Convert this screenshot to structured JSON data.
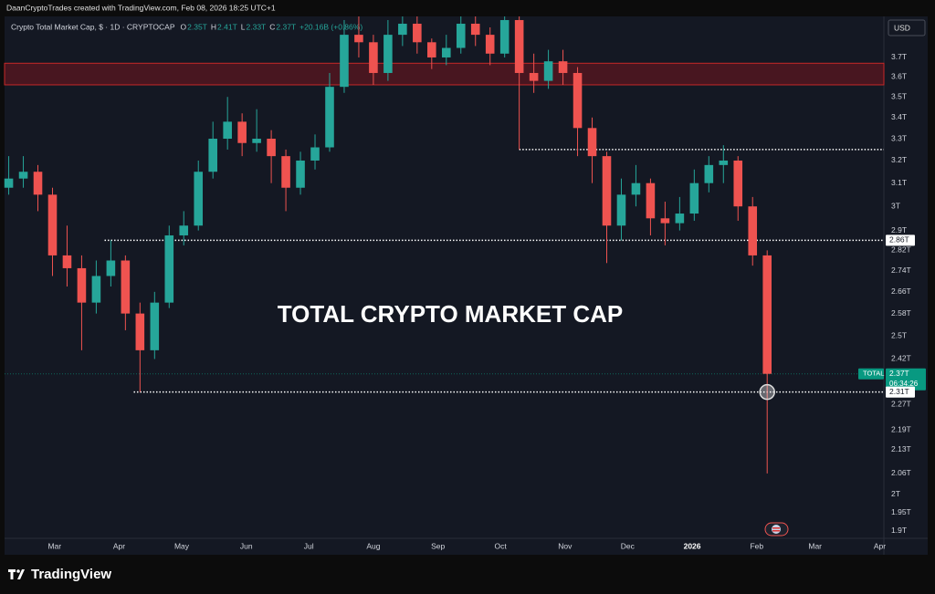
{
  "header": "DaanCryptoTrades created with TradingView.com, Feb 08, 2026 18:25 UTC+1",
  "chart_data": {
    "type": "candlestick",
    "title": "Crypto Total Market Cap, $ · 1D · CRYPTOCAP",
    "legend_values": [
      {
        "key": "O",
        "value": "2.35T"
      },
      {
        "key": "H",
        "value": "2.41T"
      },
      {
        "key": "L",
        "value": "2.33T"
      },
      {
        "key": "C",
        "value": "2.37T"
      }
    ],
    "change": "+20.16B (+0.86%)",
    "currency": "USD",
    "annotation": "TOTAL CRYPTO MARKET CAP",
    "x": [
      0,
      7,
      14,
      21,
      28,
      35,
      42,
      49,
      56,
      63,
      70,
      77,
      84,
      91,
      98,
      105,
      112,
      119,
      126,
      133,
      140,
      147,
      154,
      161,
      168,
      175,
      182,
      189,
      196,
      203,
      210,
      217,
      224,
      231,
      238,
      245,
      252,
      259,
      266,
      273,
      280,
      287,
      294,
      301,
      308,
      315,
      322,
      329,
      336,
      343,
      350,
      357,
      364
    ],
    "open": [
      3.08,
      3.12,
      3.15,
      3.05,
      2.8,
      2.75,
      2.62,
      2.72,
      2.78,
      2.58,
      2.45,
      2.62,
      2.88,
      2.92,
      3.15,
      3.3,
      3.38,
      3.28,
      3.3,
      3.22,
      3.08,
      3.2,
      3.26,
      3.55,
      3.82,
      3.78,
      3.62,
      3.82,
      3.88,
      3.78,
      3.7,
      3.75,
      3.88,
      3.82,
      3.72,
      3.9,
      3.62,
      3.58,
      3.68,
      3.62,
      3.35,
      3.22,
      2.92,
      3.05,
      3.1,
      2.95,
      2.93,
      2.97,
      3.1,
      3.18,
      3.2,
      3.0,
      2.8
    ],
    "high": [
      3.22,
      3.22,
      3.18,
      3.08,
      2.92,
      2.8,
      2.78,
      2.86,
      2.8,
      2.62,
      2.66,
      2.92,
      2.98,
      3.2,
      3.38,
      3.5,
      3.42,
      3.44,
      3.34,
      3.25,
      3.24,
      3.32,
      3.62,
      3.9,
      3.92,
      3.82,
      3.9,
      3.92,
      3.92,
      3.8,
      3.82,
      3.92,
      3.92,
      3.86,
      3.92,
      3.92,
      3.72,
      3.74,
      3.74,
      3.65,
      3.4,
      3.24,
      3.12,
      3.18,
      3.12,
      3.02,
      3.04,
      3.16,
      3.22,
      3.27,
      3.22,
      3.04,
      2.82
    ],
    "low": [
      3.05,
      3.08,
      2.98,
      2.72,
      2.68,
      2.45,
      2.58,
      2.68,
      2.52,
      2.31,
      2.42,
      2.6,
      2.84,
      2.9,
      3.12,
      3.25,
      3.22,
      3.24,
      3.1,
      2.98,
      3.05,
      3.16,
      3.24,
      3.52,
      3.7,
      3.56,
      3.58,
      3.76,
      3.72,
      3.64,
      3.66,
      3.72,
      3.76,
      3.66,
      3.7,
      3.25,
      3.52,
      3.54,
      3.56,
      3.22,
      3.1,
      2.77,
      2.86,
      3.0,
      2.88,
      2.84,
      2.9,
      2.94,
      3.06,
      3.1,
      2.94,
      2.76,
      2.06
    ],
    "close": [
      3.12,
      3.15,
      3.05,
      2.8,
      2.75,
      2.62,
      2.72,
      2.78,
      2.58,
      2.45,
      2.62,
      2.88,
      2.92,
      3.15,
      3.3,
      3.38,
      3.28,
      3.3,
      3.22,
      3.08,
      3.2,
      3.26,
      3.55,
      3.82,
      3.78,
      3.62,
      3.82,
      3.88,
      3.78,
      3.7,
      3.75,
      3.88,
      3.82,
      3.72,
      3.9,
      3.62,
      3.58,
      3.68,
      3.62,
      3.35,
      3.22,
      2.92,
      3.05,
      3.1,
      2.95,
      2.93,
      2.97,
      3.1,
      3.18,
      3.2,
      3.0,
      2.8,
      2.37
    ],
    "up_color": "#26a69a",
    "down_color": "#ef5350",
    "xlim": [
      -2,
      420
    ],
    "xticks": [
      {
        "value": 22,
        "label": "Mar"
      },
      {
        "value": 53,
        "label": "Apr"
      },
      {
        "value": 83,
        "label": "May"
      },
      {
        "value": 114,
        "label": "Jun"
      },
      {
        "value": 144,
        "label": "Jul"
      },
      {
        "value": 175,
        "label": "Aug"
      },
      {
        "value": 206,
        "label": "Sep"
      },
      {
        "value": 236,
        "label": "Oct"
      },
      {
        "value": 267,
        "label": "Nov"
      },
      {
        "value": 297,
        "label": "Dec"
      },
      {
        "value": 328,
        "label": "2026"
      },
      {
        "value": 359,
        "label": "Feb"
      },
      {
        "value": 387,
        "label": "Mar"
      },
      {
        "value": 418,
        "label": "Apr"
      }
    ],
    "ylim": [
      1.88,
      3.92
    ],
    "log_scale": true,
    "grid": false,
    "yticks": [
      {
        "value": 1.9,
        "label": "1.9T"
      },
      {
        "value": 1.95,
        "label": "1.95T"
      },
      {
        "value": 2,
        "label": "2T"
      },
      {
        "value": 2.06,
        "label": "2.06T"
      },
      {
        "value": 2.13,
        "label": "2.13T"
      },
      {
        "value": 2.19,
        "label": "2.19T"
      },
      {
        "value": 2.27,
        "label": "2.27T"
      },
      {
        "value": 2.42,
        "label": "2.42T"
      },
      {
        "value": 2.5,
        "label": "2.5T"
      },
      {
        "value": 2.58,
        "label": "2.58T"
      },
      {
        "value": 2.66,
        "label": "2.66T"
      },
      {
        "value": 2.74,
        "label": "2.74T"
      },
      {
        "value": 2.82,
        "label": "2.82T"
      },
      {
        "value": 2.9,
        "label": "2.9T"
      },
      {
        "value": 3,
        "label": "3T"
      },
      {
        "value": 3.1,
        "label": "3.1T"
      },
      {
        "value": 3.2,
        "label": "3.2T"
      },
      {
        "value": 3.3,
        "label": "3.3T"
      },
      {
        "value": 3.4,
        "label": "3.4T"
      },
      {
        "value": 3.5,
        "label": "3.5T"
      },
      {
        "value": 3.6,
        "label": "3.6T"
      },
      {
        "value": 3.7,
        "label": "3.7T"
      }
    ],
    "zone": {
      "from": 3.56,
      "to": 3.67,
      "color": "#5a1620"
    },
    "levels": [
      {
        "value": 3.25,
        "start": 245
      },
      {
        "value": 2.86,
        "start": 46,
        "label": "2.86T"
      },
      {
        "value": 2.31,
        "start": 60,
        "label": "2.31T"
      }
    ],
    "last": {
      "tag": "TOTAL",
      "value": 2.37,
      "label": "2.37T",
      "countdown": "06:34:26",
      "color": "#089981"
    }
  },
  "footer": "TradingView"
}
